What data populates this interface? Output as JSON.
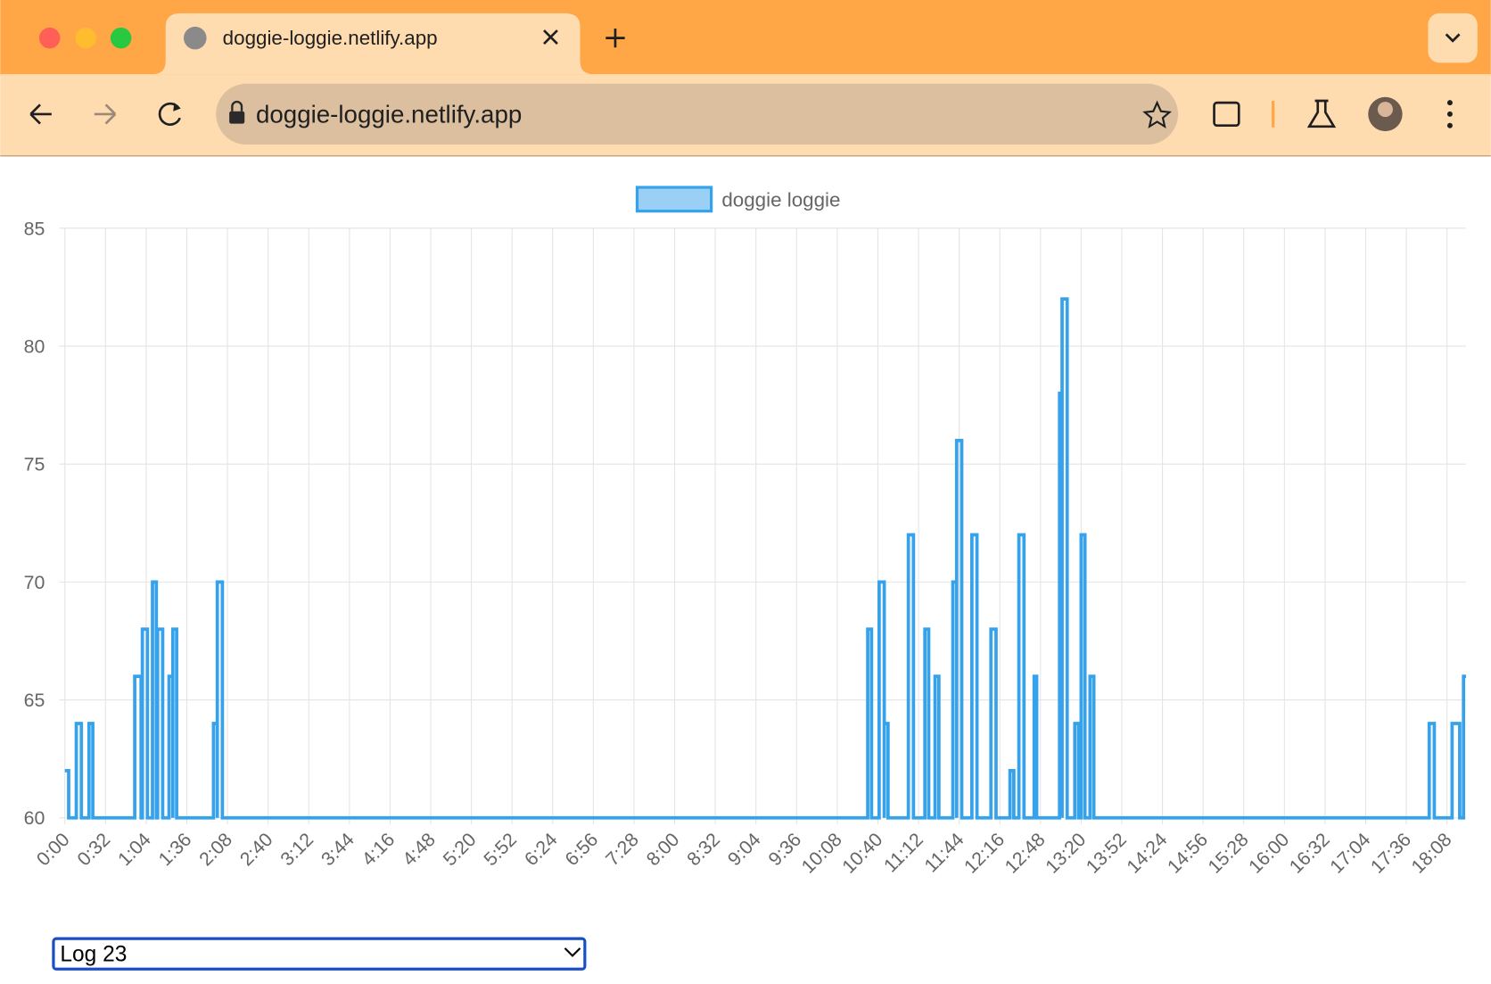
{
  "browser": {
    "tab_title": "doggie-loggie.netlify.app",
    "url": "doggie-loggie.netlify.app",
    "select_value": "Log 23"
  },
  "chart_data": {
    "type": "line",
    "x": [
      0,
      3,
      3,
      9,
      9,
      13,
      13,
      19,
      19,
      22,
      22,
      55,
      55,
      60,
      60,
      61,
      61,
      65,
      65,
      69,
      69,
      72,
      72,
      73,
      73,
      77,
      77,
      82,
      82,
      85,
      85,
      85,
      85,
      88,
      88,
      117,
      117,
      120,
      120,
      120,
      120,
      124,
      124,
      632,
      632,
      635,
      635,
      641,
      641,
      645,
      645,
      645,
      645,
      648,
      648,
      664,
      664,
      668,
      668,
      677,
      677,
      680,
      680,
      685,
      685,
      688,
      688,
      699,
      699,
      702,
      702,
      702,
      702,
      706,
      706,
      714,
      714,
      718,
      718,
      729,
      729,
      733,
      733,
      744,
      744,
      747,
      747,
      751,
      751,
      755,
      755,
      763,
      763,
      765,
      765,
      783,
      783,
      785,
      785,
      785,
      785,
      789,
      789,
      795,
      795,
      798,
      798,
      800,
      800,
      803,
      803,
      807,
      807,
      810,
      810,
      1074,
      1074,
      1078,
      1078,
      1092,
      1092,
      1098,
      1098,
      1101,
      1101,
      1103
    ],
    "series": [
      {
        "name": "doggie loggie",
        "color": "#36a2eb",
        "values": [
          62,
          62,
          60,
          60,
          64,
          64,
          60,
          60,
          64,
          64,
          60,
          60,
          66,
          66,
          60,
          60,
          68,
          68,
          60,
          60,
          70,
          70,
          60,
          60,
          68,
          68,
          60,
          60,
          66,
          66,
          60,
          60,
          68,
          68,
          60,
          60,
          64,
          64,
          60,
          60,
          70,
          70,
          60,
          60,
          68,
          68,
          60,
          60,
          70,
          70,
          60,
          60,
          64,
          64,
          60,
          60,
          72,
          72,
          60,
          60,
          68,
          68,
          60,
          60,
          66,
          66,
          60,
          60,
          70,
          70,
          60,
          60,
          76,
          76,
          60,
          60,
          72,
          72,
          60,
          60,
          68,
          68,
          60,
          60,
          62,
          62,
          60,
          60,
          72,
          72,
          60,
          60,
          66,
          66,
          60,
          60,
          78,
          78,
          60,
          60,
          82,
          82,
          60,
          60,
          64,
          64,
          60,
          60,
          72,
          72,
          60,
          60,
          66,
          66,
          60,
          60,
          64,
          64,
          60,
          60,
          64,
          64,
          60,
          60,
          66,
          66
        ]
      }
    ],
    "xlim": [
      0,
      1103
    ],
    "xticks": [
      {
        "value": 0,
        "label": "0:00"
      },
      {
        "value": 32,
        "label": "0:32"
      },
      {
        "value": 64,
        "label": "1:04"
      },
      {
        "value": 96,
        "label": "1:36"
      },
      {
        "value": 128,
        "label": "2:08"
      },
      {
        "value": 160,
        "label": "2:40"
      },
      {
        "value": 192,
        "label": "3:12"
      },
      {
        "value": 224,
        "label": "3:44"
      },
      {
        "value": 256,
        "label": "4:16"
      },
      {
        "value": 288,
        "label": "4:48"
      },
      {
        "value": 320,
        "label": "5:20"
      },
      {
        "value": 352,
        "label": "5:52"
      },
      {
        "value": 384,
        "label": "6:24"
      },
      {
        "value": 416,
        "label": "6:56"
      },
      {
        "value": 448,
        "label": "7:28"
      },
      {
        "value": 480,
        "label": "8:00"
      },
      {
        "value": 512,
        "label": "8:32"
      },
      {
        "value": 544,
        "label": "9:04"
      },
      {
        "value": 576,
        "label": "9:36"
      },
      {
        "value": 608,
        "label": "10:08"
      },
      {
        "value": 640,
        "label": "10:40"
      },
      {
        "value": 672,
        "label": "11:12"
      },
      {
        "value": 704,
        "label": "11:44"
      },
      {
        "value": 736,
        "label": "12:16"
      },
      {
        "value": 768,
        "label": "12:48"
      },
      {
        "value": 800,
        "label": "13:20"
      },
      {
        "value": 832,
        "label": "13:52"
      },
      {
        "value": 864,
        "label": "14:24"
      },
      {
        "value": 896,
        "label": "14:56"
      },
      {
        "value": 928,
        "label": "15:28"
      },
      {
        "value": 960,
        "label": "16:00"
      },
      {
        "value": 992,
        "label": "16:32"
      },
      {
        "value": 1024,
        "label": "17:04"
      },
      {
        "value": 1056,
        "label": "17:36"
      },
      {
        "value": 1088,
        "label": "18:08"
      }
    ],
    "ylim": [
      60,
      85
    ],
    "yticks": [
      60,
      65,
      70,
      75,
      80,
      85
    ],
    "grid": true,
    "legend": "top"
  }
}
